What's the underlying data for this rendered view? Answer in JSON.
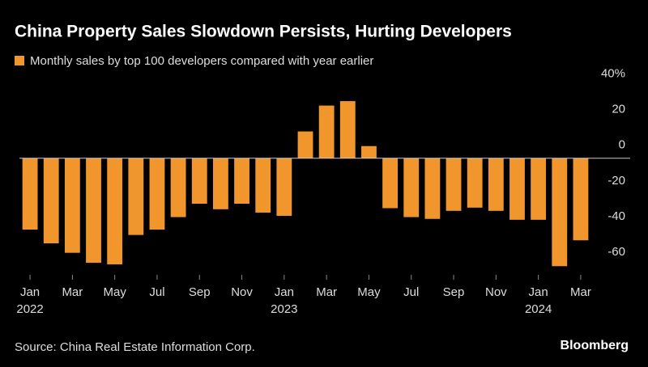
{
  "chart_data": {
    "type": "bar",
    "title": "China Property Sales Slowdown Persists, Hurting Developers",
    "legend": "Monthly sales by top 100 developers compared with year earlier",
    "source": "Source: China Real Estate Information Corp.",
    "brand": "Bloomberg",
    "color": "#f0962d",
    "categories": [
      "Jan",
      null,
      "Mar",
      null,
      "May",
      null,
      "Jul",
      null,
      "Sep",
      null,
      "Nov",
      null,
      "Jan",
      null,
      "Mar",
      null,
      "May",
      null,
      "Jul",
      null,
      "Sep",
      null,
      "Nov",
      null,
      "Jan",
      null,
      "Mar"
    ],
    "years": [
      "2022",
      "2023",
      "2024"
    ],
    "values": [
      -40,
      -47.7,
      -53,
      -58.6,
      -59.5,
      -43,
      -40,
      -33,
      -25.5,
      -28.6,
      -25.5,
      -30.5,
      -32.3,
      15,
      29.5,
      32,
      6.8,
      -28,
      -33,
      -34,
      -29.5,
      -27.7,
      -29.5,
      -34.5,
      -34.5,
      -60.5,
      -46
    ],
    "ylim": [
      -64,
      42
    ],
    "yticks": [
      {
        "value": 40,
        "label": "40%"
      },
      20,
      0,
      -20,
      -40,
      -60
    ]
  }
}
